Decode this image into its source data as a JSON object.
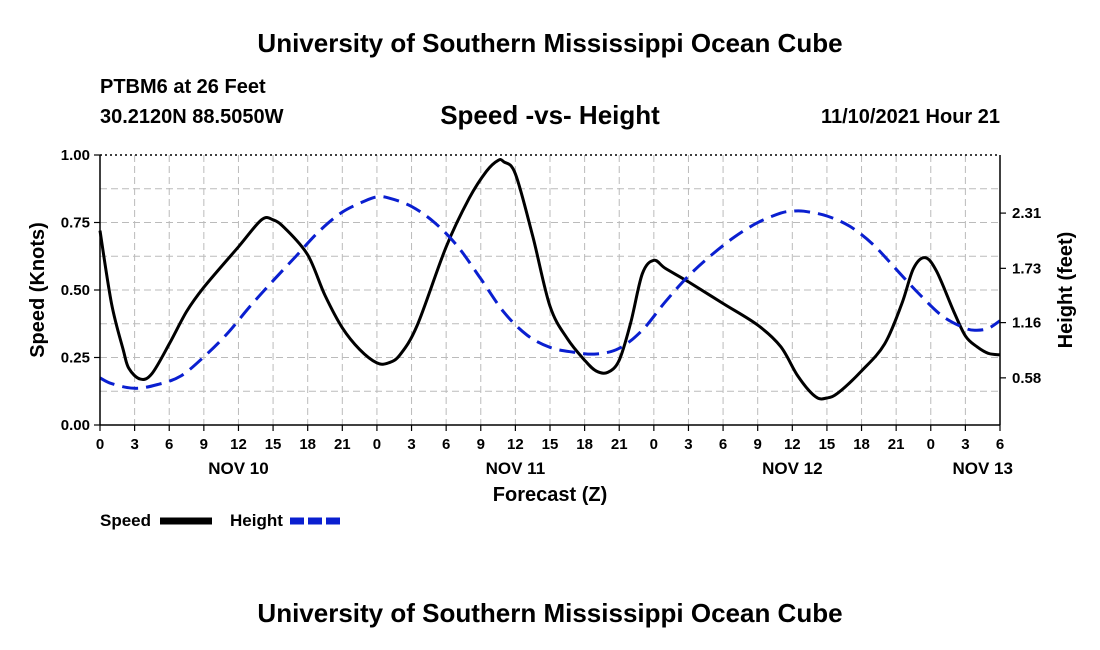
{
  "header": {
    "title_top": "University of Southern Mississippi Ocean Cube",
    "title_bottom": "University of Southern Mississippi Ocean Cube",
    "station": "PTBM6 at 26 Feet",
    "coords": "30.2120N  88.5050W",
    "datetime": "11/10/2021 Hour 21"
  },
  "colors": {
    "speed": "#000000",
    "height": "#0a1fd0",
    "grid": "#bbbbbb"
  },
  "chart_data": {
    "type": "line",
    "title": "Speed -vs- Height",
    "xlabel": "Forecast (Z)",
    "ylabel": "Speed (Knots)",
    "y2label": "Height (feet)",
    "x_unit": "hours since NOV 10 00Z",
    "xlim": [
      0,
      78
    ],
    "ylim": [
      0,
      1.0
    ],
    "y2lim": [
      0.085,
      2.92
    ],
    "x_ticks": [
      0,
      3,
      6,
      9,
      12,
      15,
      18,
      21,
      24,
      27,
      30,
      33,
      36,
      39,
      42,
      45,
      48,
      51,
      54,
      57,
      60,
      63,
      66,
      69,
      72,
      75,
      78
    ],
    "x_tick_labels": [
      "0",
      "3",
      "6",
      "9",
      "12",
      "15",
      "18",
      "21",
      "0",
      "3",
      "6",
      "9",
      "12",
      "15",
      "18",
      "21",
      "0",
      "3",
      "6",
      "9",
      "12",
      "15",
      "18",
      "21",
      "0",
      "3",
      "6"
    ],
    "date_labels": [
      {
        "x": 12,
        "label": "NOV 10"
      },
      {
        "x": 36,
        "label": "NOV 11"
      },
      {
        "x": 60,
        "label": "NOV 12"
      },
      {
        "x": 76.5,
        "label": "NOV 13"
      }
    ],
    "y_ticks": [
      0.0,
      0.25,
      0.5,
      0.75,
      1.0
    ],
    "y_tick_labels": [
      "0.00",
      "0.25",
      "0.50",
      "0.75",
      "1.00"
    ],
    "y2_ticks": [
      0.58,
      1.16,
      1.73,
      2.31
    ],
    "y2_tick_labels": [
      "0.58",
      "1.16",
      "1.73",
      "2.31"
    ],
    "series": [
      {
        "name": "Speed",
        "axis": "left",
        "style": "solid",
        "points": [
          [
            0,
            0.72
          ],
          [
            1,
            0.45
          ],
          [
            2,
            0.28
          ],
          [
            2.5,
            0.21
          ],
          [
            3.5,
            0.17
          ],
          [
            4.5,
            0.19
          ],
          [
            6,
            0.3
          ],
          [
            7.5,
            0.42
          ],
          [
            9,
            0.51
          ],
          [
            12,
            0.66
          ],
          [
            14,
            0.76
          ],
          [
            15,
            0.76
          ],
          [
            16,
            0.73
          ],
          [
            18,
            0.63
          ],
          [
            19.5,
            0.48
          ],
          [
            21,
            0.36
          ],
          [
            22.5,
            0.28
          ],
          [
            24,
            0.23
          ],
          [
            25,
            0.23
          ],
          [
            26,
            0.26
          ],
          [
            27.5,
            0.37
          ],
          [
            30,
            0.66
          ],
          [
            32,
            0.84
          ],
          [
            33.5,
            0.94
          ],
          [
            34.5,
            0.98
          ],
          [
            35,
            0.975
          ],
          [
            36,
            0.93
          ],
          [
            37.5,
            0.7
          ],
          [
            39,
            0.44
          ],
          [
            40.5,
            0.32
          ],
          [
            42,
            0.24
          ],
          [
            43,
            0.2
          ],
          [
            44,
            0.195
          ],
          [
            45,
            0.24
          ],
          [
            46,
            0.38
          ],
          [
            47,
            0.56
          ],
          [
            48,
            0.61
          ],
          [
            49,
            0.58
          ],
          [
            51,
            0.53
          ],
          [
            54,
            0.45
          ],
          [
            57,
            0.37
          ],
          [
            59,
            0.29
          ],
          [
            60.5,
            0.18
          ],
          [
            62,
            0.105
          ],
          [
            63,
            0.1
          ],
          [
            64,
            0.12
          ],
          [
            66,
            0.2
          ],
          [
            68,
            0.3
          ],
          [
            69.5,
            0.45
          ],
          [
            70.5,
            0.58
          ],
          [
            71.5,
            0.62
          ],
          [
            72.5,
            0.57
          ],
          [
            74,
            0.42
          ],
          [
            75,
            0.33
          ],
          [
            76,
            0.29
          ],
          [
            77,
            0.265
          ],
          [
            78,
            0.26
          ]
        ]
      },
      {
        "name": "Height",
        "axis": "right",
        "style": "dashed",
        "points": [
          [
            0,
            0.58
          ],
          [
            1,
            0.52
          ],
          [
            3,
            0.47
          ],
          [
            5,
            0.51
          ],
          [
            7,
            0.6
          ],
          [
            9,
            0.8
          ],
          [
            11,
            1.04
          ],
          [
            13,
            1.33
          ],
          [
            15,
            1.6
          ],
          [
            17,
            1.86
          ],
          [
            19,
            2.12
          ],
          [
            21,
            2.32
          ],
          [
            23,
            2.44
          ],
          [
            24,
            2.48
          ],
          [
            25,
            2.47
          ],
          [
            27,
            2.38
          ],
          [
            29,
            2.21
          ],
          [
            31,
            1.96
          ],
          [
            33,
            1.62
          ],
          [
            35,
            1.27
          ],
          [
            37,
            1.03
          ],
          [
            39,
            0.9
          ],
          [
            41,
            0.85
          ],
          [
            43,
            0.83
          ],
          [
            45,
            0.89
          ],
          [
            47,
            1.08
          ],
          [
            49,
            1.38
          ],
          [
            51,
            1.65
          ],
          [
            53,
            1.87
          ],
          [
            55,
            2.06
          ],
          [
            57,
            2.21
          ],
          [
            59,
            2.31
          ],
          [
            60,
            2.33
          ],
          [
            61,
            2.33
          ],
          [
            63,
            2.28
          ],
          [
            65,
            2.17
          ],
          [
            67,
            1.98
          ],
          [
            69,
            1.72
          ],
          [
            71,
            1.46
          ],
          [
            73,
            1.23
          ],
          [
            75,
            1.1
          ],
          [
            76,
            1.08
          ],
          [
            77,
            1.1
          ],
          [
            78,
            1.18
          ]
        ]
      }
    ],
    "legend": [
      {
        "label": "Speed",
        "series": "Speed"
      },
      {
        "label": "Height",
        "series": "Height"
      }
    ],
    "grid": true
  }
}
